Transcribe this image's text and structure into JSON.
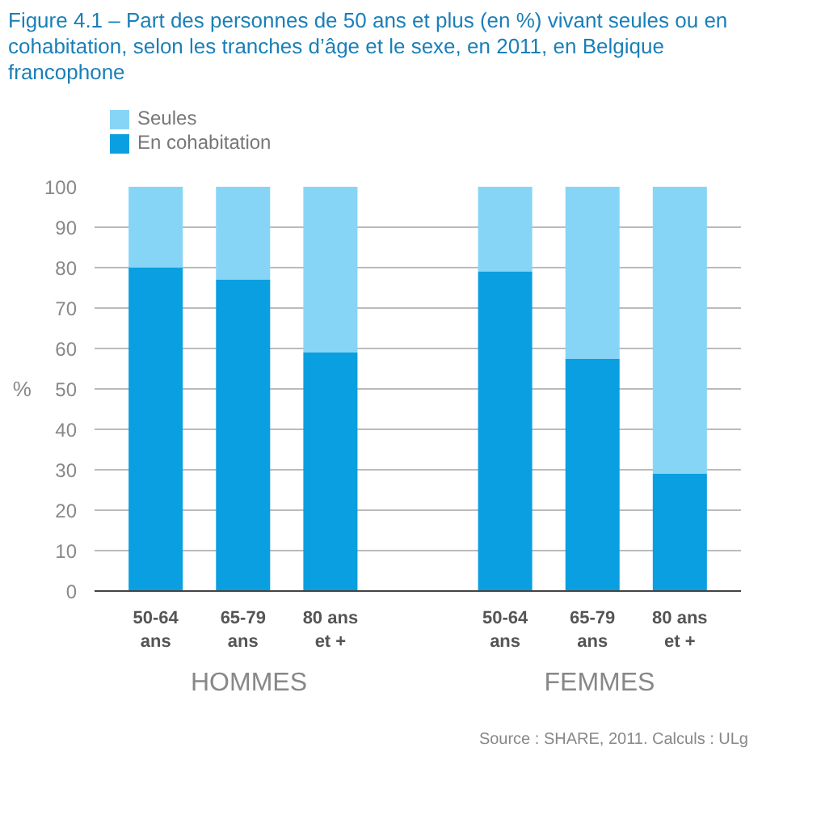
{
  "chart_data": {
    "type": "bar",
    "stacked": true,
    "title": "Figure 4.1 – Part des personnes de 50 ans et plus (en %) vivant seules ou en cohabitation, selon les tranches d’âge et le sexe, en 2011, en Belgique francophone",
    "ylabel": "%",
    "categories": [
      "50-64 ans",
      "65-79 ans",
      "80 ans et +",
      "50-64 ans",
      "65-79 ans",
      "80 ans et +"
    ],
    "series": [
      {
        "name": "En cohabitation",
        "color": "#0a9fe0",
        "values": [
          80,
          77,
          59,
          79,
          57.5,
          29
        ]
      },
      {
        "name": "Seules",
        "color": "#86d5f6",
        "values": [
          20,
          23,
          41,
          21,
          42.5,
          71
        ]
      }
    ],
    "ylim": [
      0,
      100
    ],
    "yticks": [
      0,
      10,
      20,
      30,
      40,
      50,
      60,
      70,
      80,
      90,
      100
    ],
    "grid": "y",
    "legend": "top left",
    "annotations": [
      "HOMMES",
      "FEMMES",
      "Source : SHARE, 2011. Calculs : ULg"
    ]
  }
}
